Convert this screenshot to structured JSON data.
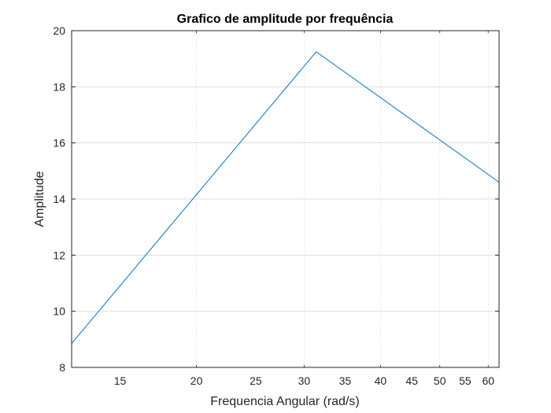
{
  "chart_data": {
    "type": "line",
    "title": "Grafico de amplitude por frequência",
    "xlabel": "Frequencia Angular (rad/s)",
    "ylabel": "Amplitude",
    "xscale": "log",
    "xlim": [
      12.5,
      62.5
    ],
    "ylim": [
      8,
      20
    ],
    "grid": true,
    "x_major_ticks": [
      10,
      100
    ],
    "x_ticks": [
      15,
      20,
      25,
      30,
      35,
      40,
      45,
      50,
      55,
      60
    ],
    "x_tick_labels": [
      "15",
      "20",
      "25",
      "30",
      "35",
      "40",
      "45",
      "50",
      "55",
      "60"
    ],
    "y_ticks": [
      8,
      10,
      12,
      14,
      16,
      18,
      20
    ],
    "y_tick_labels": [
      "8",
      "10",
      "12",
      "14",
      "16",
      "18",
      "20"
    ],
    "series": [
      {
        "color": "#0072BD",
        "x": [
          12.5,
          31.4,
          62.5
        ],
        "y": [
          8.85,
          19.25,
          14.6
        ]
      }
    ]
  }
}
